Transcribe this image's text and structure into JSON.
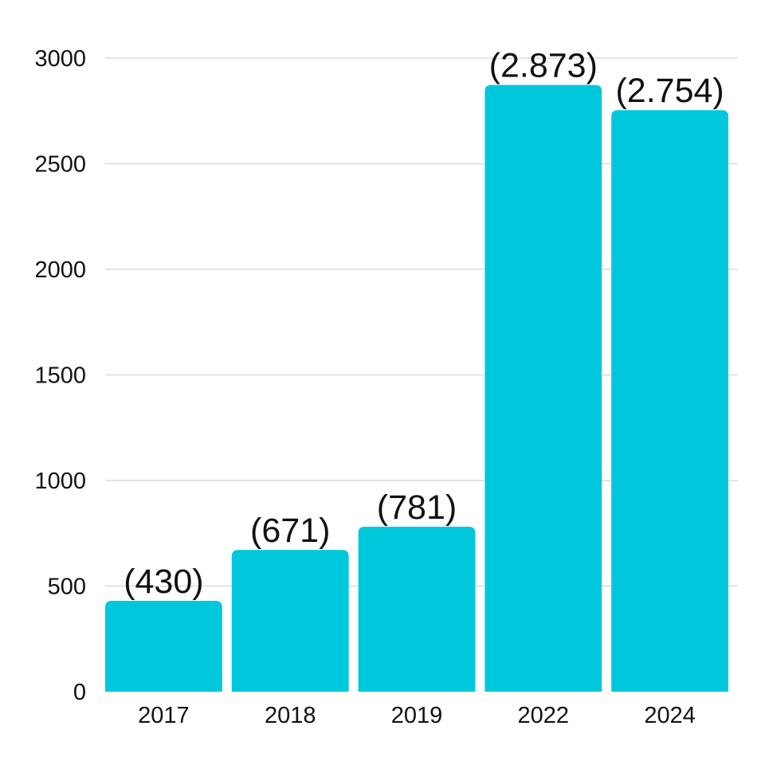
{
  "chart_data": {
    "type": "bar",
    "categories": [
      "2017",
      "2018",
      "2019",
      "2022",
      "2024"
    ],
    "values": [
      430,
      671,
      781,
      2873,
      2754
    ],
    "data_labels": [
      "(430)",
      "(671)",
      "(781)",
      "(2.873)",
      "(2.754)"
    ],
    "yticks": [
      "0",
      "500",
      "1000",
      "1500",
      "2000",
      "2500",
      "3000"
    ],
    "ylim": [
      0,
      3000
    ],
    "grid": true,
    "bar_color": "#00c8dc"
  }
}
